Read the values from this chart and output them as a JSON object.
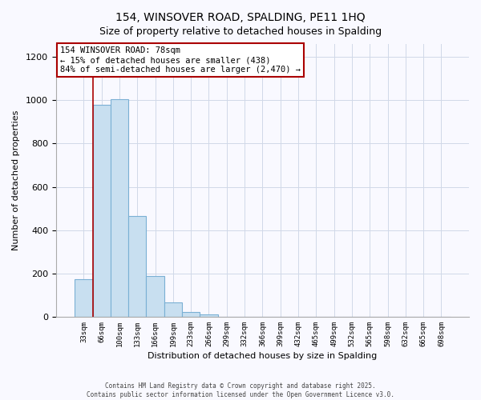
{
  "title": "154, WINSOVER ROAD, SPALDING, PE11 1HQ",
  "subtitle": "Size of property relative to detached houses in Spalding",
  "xlabel": "Distribution of detached houses by size in Spalding",
  "ylabel": "Number of detached properties",
  "bin_labels": [
    "33sqm",
    "66sqm",
    "100sqm",
    "133sqm",
    "166sqm",
    "199sqm",
    "233sqm",
    "266sqm",
    "299sqm",
    "332sqm",
    "366sqm",
    "399sqm",
    "432sqm",
    "465sqm",
    "499sqm",
    "532sqm",
    "565sqm",
    "598sqm",
    "632sqm",
    "665sqm",
    "698sqm"
  ],
  "bin_values": [
    175,
    980,
    1005,
    465,
    190,
    68,
    22,
    12,
    0,
    0,
    0,
    0,
    0,
    0,
    0,
    0,
    0,
    0,
    0,
    0,
    0
  ],
  "bar_color": "#c8dff0",
  "bar_edge_color": "#7ab0d4",
  "property_line_color": "#aa0000",
  "property_line_x": 0.5,
  "ylim": [
    0,
    1260
  ],
  "yticks": [
    0,
    200,
    400,
    600,
    800,
    1000,
    1200
  ],
  "annotation_text": "154 WINSOVER ROAD: 78sqm\n← 15% of detached houses are smaller (438)\n84% of semi-detached houses are larger (2,470) →",
  "annotation_box_edge_color": "#aa0000",
  "footer_line1": "Contains HM Land Registry data © Crown copyright and database right 2025.",
  "footer_line2": "Contains public sector information licensed under the Open Government Licence v3.0.",
  "background_color": "#f9f9ff",
  "grid_color": "#d0d8e8",
  "title_fontsize": 10,
  "subtitle_fontsize": 9
}
